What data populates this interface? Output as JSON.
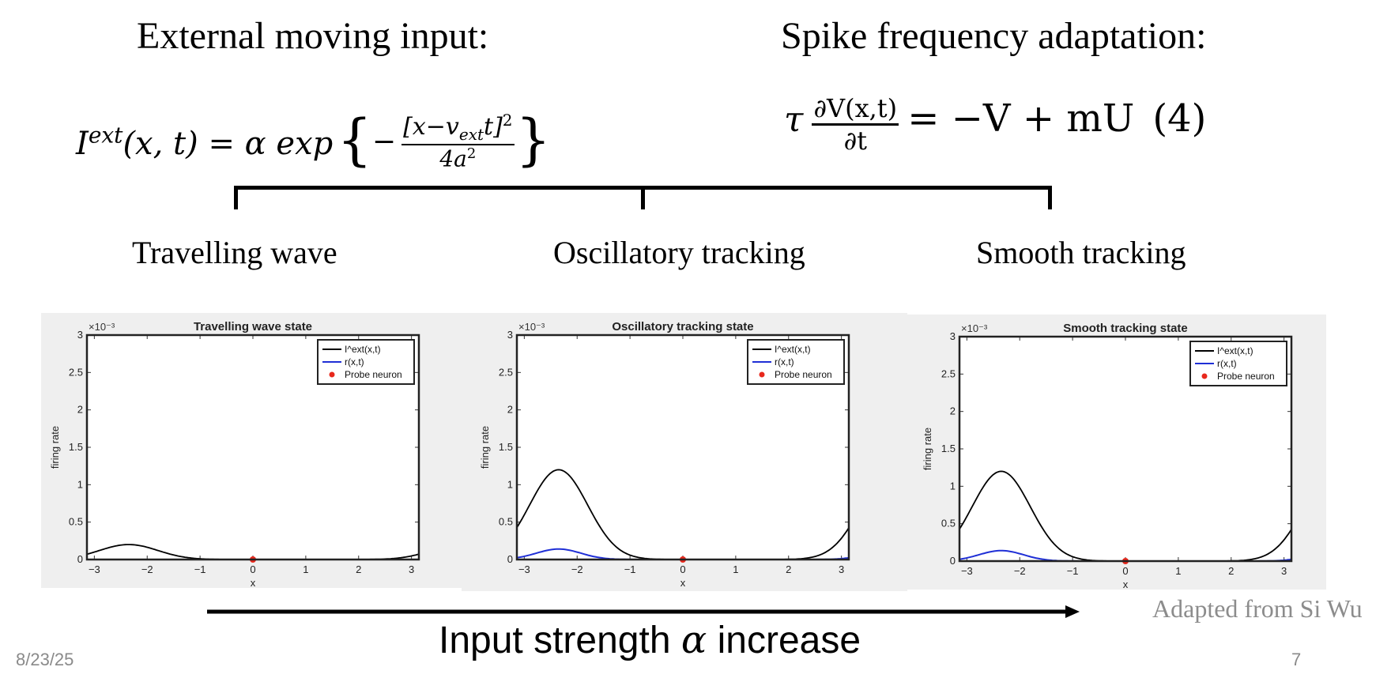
{
  "headings": {
    "left": "External moving input:",
    "right": "Spike frequency adaptation:"
  },
  "equations": {
    "left": {
      "lhs_symbol": "I",
      "lhs_sup": "ext",
      "lhs_args": "(x, t)",
      "equals": "=",
      "alpha": "α",
      "fn": "exp",
      "numerator": "[x−v",
      "numerator_sub": "ext",
      "numerator_tail": "t]",
      "numerator_sup": "2",
      "denominator": "4a",
      "denominator_sup": "2"
    },
    "right": {
      "tau": "τ",
      "numerator": "∂V(x,t)",
      "denominator": "∂t",
      "rhs": "= −V + mU",
      "number": "(4)"
    }
  },
  "regime_labels": [
    "Travelling wave",
    "Oscillatory tracking",
    "Smooth tracking"
  ],
  "arrow_caption": {
    "prefix": "Input strength ",
    "alpha": "α",
    "suffix": " increase"
  },
  "credit": "Adapted from Si Wu",
  "footer": {
    "date": "8/23/25",
    "page": "7"
  },
  "colors": {
    "input_curve": "#000000",
    "rate_curve": "#1f2fd6",
    "probe": "#e8281c",
    "panel_bg": "#efefef"
  },
  "chart_data": [
    {
      "type": "line",
      "title": "Travelling wave state",
      "xlabel": "x",
      "ylabel": "firing rate",
      "y_exponent": "×10⁻³",
      "xlim": [
        -3.14,
        3.14
      ],
      "ylim": [
        0,
        3
      ],
      "x_ticks": [
        "−3",
        "−2",
        "−1",
        "0",
        "1",
        "2",
        "3"
      ],
      "y_ticks": [
        "0",
        "0.5",
        "1",
        "1.5",
        "2",
        "2.5",
        "3"
      ],
      "legend": [
        "I^ext(x,t)",
        "r(x,t)",
        "Probe neuron"
      ],
      "legend_position": "top-right",
      "series": [
        {
          "name": "I^ext(x,t)",
          "kind": "gaussian_periodic",
          "center": -2.35,
          "amplitude": 0.2,
          "width": 0.55
        },
        {
          "name": "r(x,t)",
          "kind": "gaussian_periodic",
          "center": -2.35,
          "amplitude": 0.0,
          "width": 0.5
        }
      ],
      "probe": {
        "x": 0,
        "y": 0
      }
    },
    {
      "type": "line",
      "title": "Oscillatory tracking state",
      "xlabel": "x",
      "ylabel": "firing rate",
      "y_exponent": "×10⁻³",
      "xlim": [
        -3.14,
        3.14
      ],
      "ylim": [
        0,
        3
      ],
      "x_ticks": [
        "−3",
        "−2",
        "−1",
        "0",
        "1",
        "2",
        "3"
      ],
      "y_ticks": [
        "0",
        "0.5",
        "1",
        "1.5",
        "2",
        "2.5",
        "3"
      ],
      "legend": [
        "I^ext(x,t)",
        "r(x,t)",
        "Probe neuron"
      ],
      "legend_position": "top-right",
      "series": [
        {
          "name": "I^ext(x,t)",
          "kind": "gaussian_periodic",
          "center": -2.35,
          "amplitude": 1.2,
          "width": 0.55
        },
        {
          "name": "r(x,t)",
          "kind": "gaussian_periodic",
          "center": -2.35,
          "amplitude": 0.14,
          "width": 0.42
        }
      ],
      "probe": {
        "x": 0,
        "y": 0
      }
    },
    {
      "type": "line",
      "title": "Smooth tracking state",
      "xlabel": "x",
      "ylabel": "firing rate",
      "y_exponent": "×10⁻³",
      "xlim": [
        -3.14,
        3.14
      ],
      "ylim": [
        0,
        3
      ],
      "x_ticks": [
        "−3",
        "−2",
        "−1",
        "0",
        "1",
        "2",
        "3"
      ],
      "y_ticks": [
        "0",
        "0.5",
        "1",
        "1.5",
        "2",
        "2.5",
        "3"
      ],
      "legend": [
        "I^ext(x,t)",
        "r(x,t)",
        "Probe neuron"
      ],
      "legend_position": "top-right",
      "series": [
        {
          "name": "I^ext(x,t)",
          "kind": "gaussian_periodic",
          "center": -2.35,
          "amplitude": 1.2,
          "width": 0.55
        },
        {
          "name": "r(x,t)",
          "kind": "gaussian_periodic",
          "center": -2.35,
          "amplitude": 0.14,
          "width": 0.42
        }
      ],
      "probe": {
        "x": 0,
        "y": 0
      }
    }
  ]
}
